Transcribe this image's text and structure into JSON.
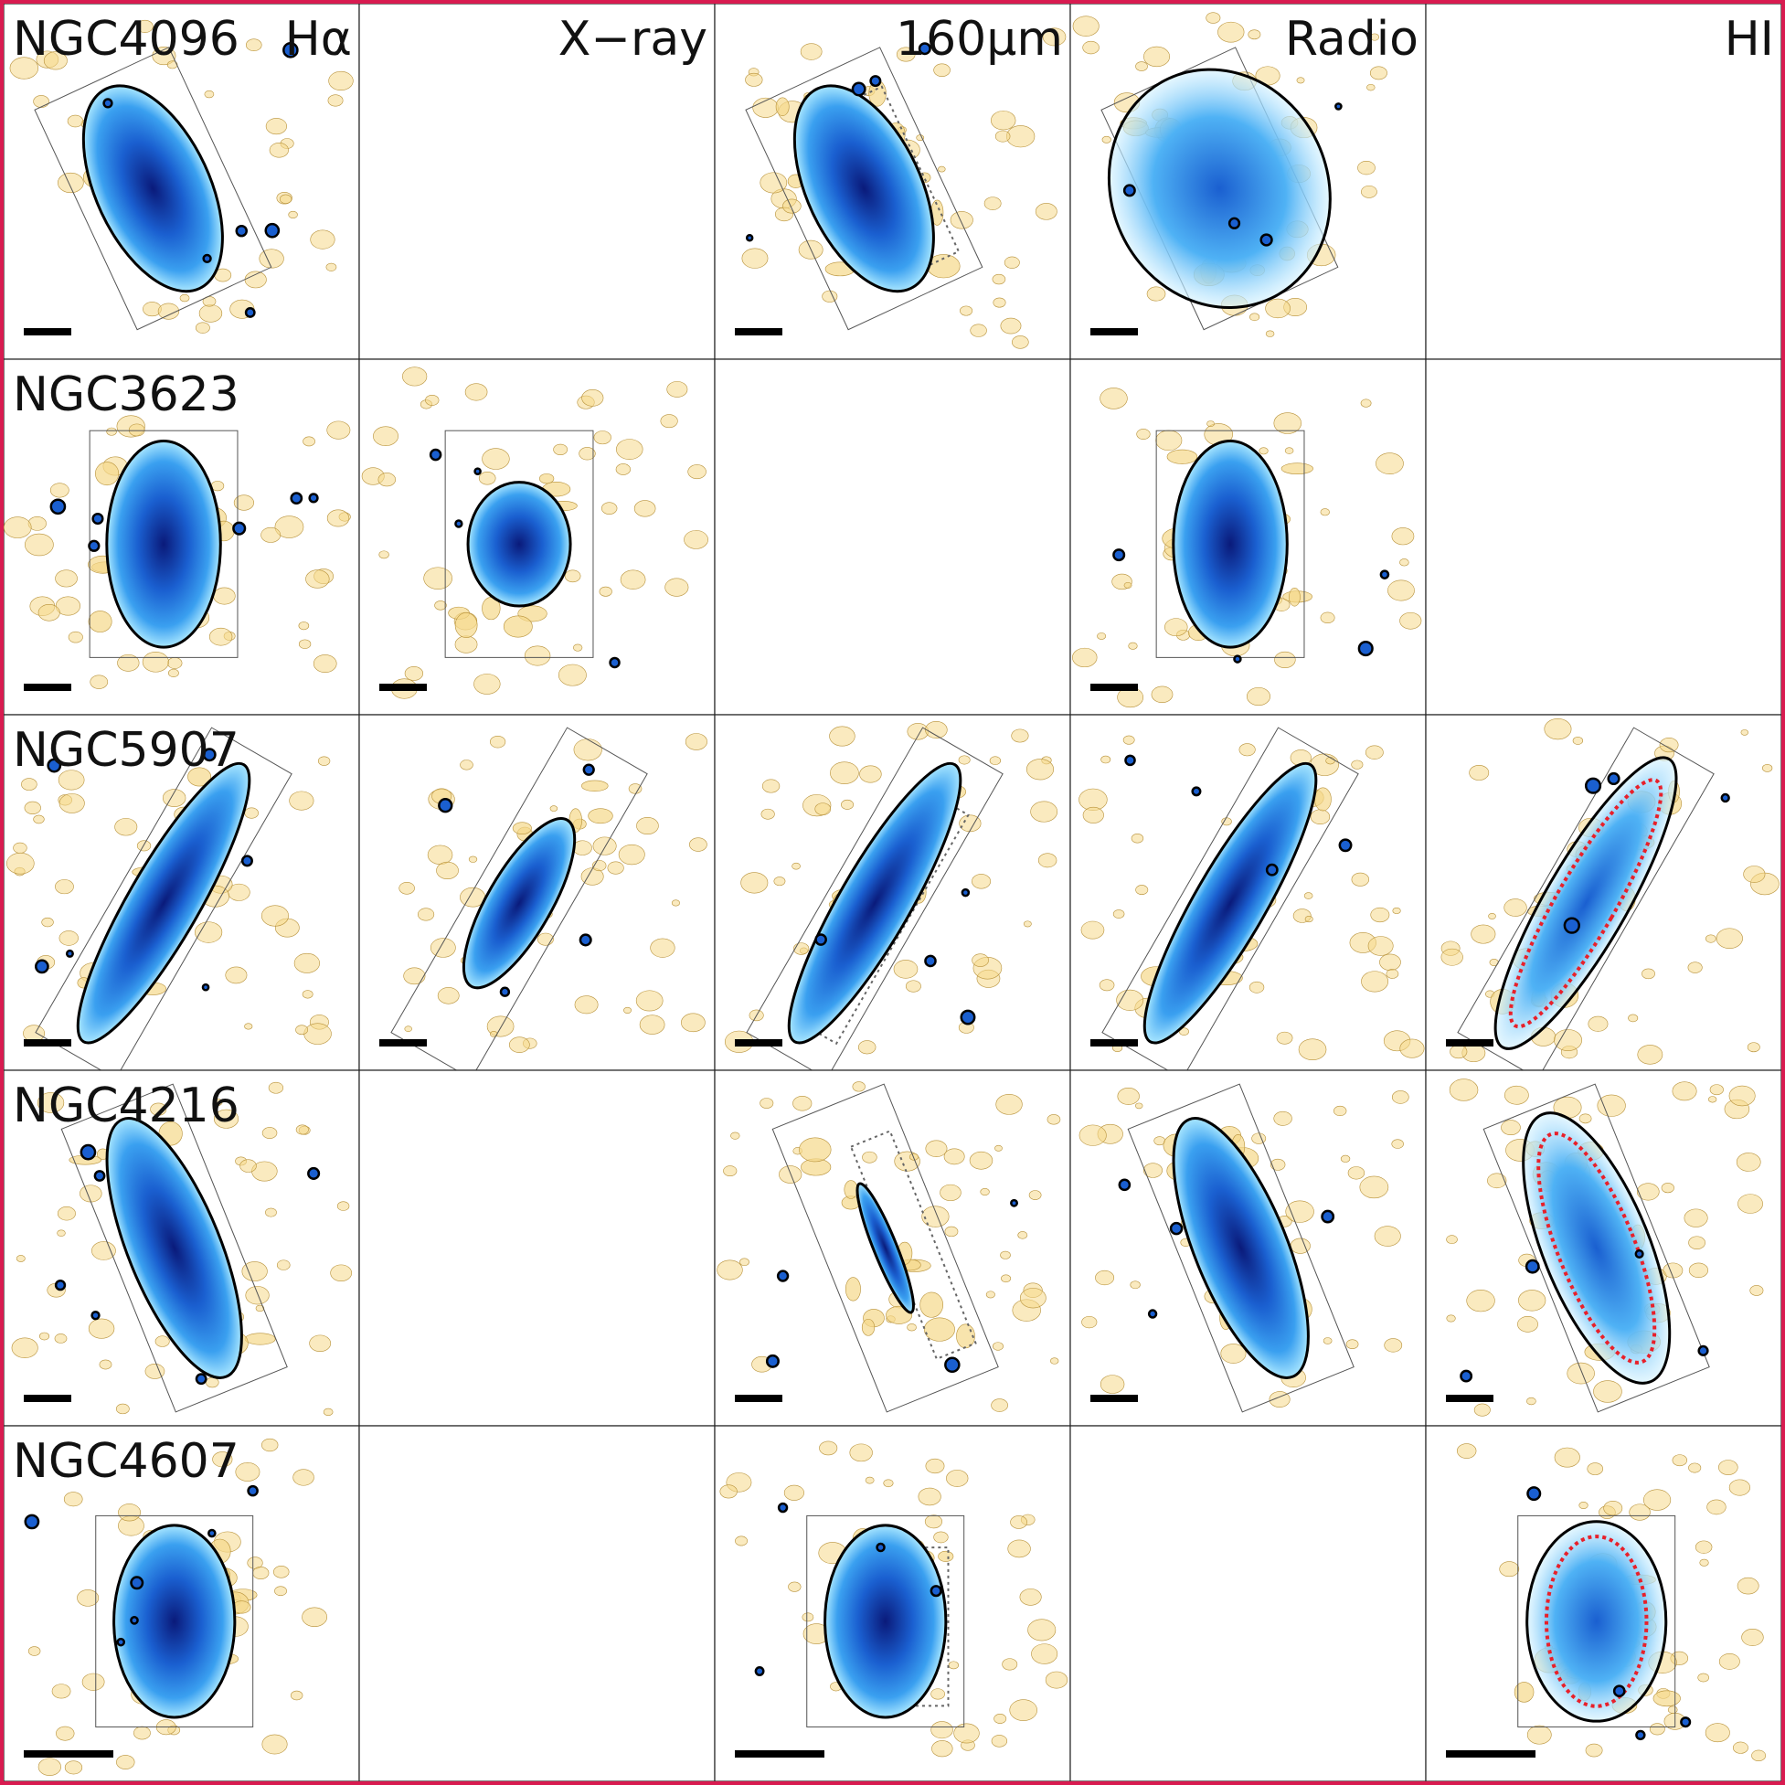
{
  "figure": {
    "columns": [
      "Hα",
      "X−ray",
      "160μm",
      "Radio",
      "HI"
    ],
    "rows": [
      {
        "galaxy": "NGC4096",
        "panels": {
          "halpha": true,
          "xray": false,
          "fir": true,
          "radio": true,
          "hi": false
        }
      },
      {
        "galaxy": "NGC3623",
        "panels": {
          "halpha": true,
          "xray": true,
          "fir": false,
          "radio": true,
          "hi": false
        }
      },
      {
        "galaxy": "NGC5907",
        "panels": {
          "halpha": true,
          "xray": true,
          "fir": true,
          "radio": true,
          "hi": true
        }
      },
      {
        "galaxy": "NGC4216",
        "panels": {
          "halpha": true,
          "xray": false,
          "fir": true,
          "radio": true,
          "hi": true
        }
      },
      {
        "galaxy": "NGC4607",
        "panels": {
          "halpha": true,
          "xray": false,
          "fir": true,
          "radio": false,
          "hi": true
        }
      }
    ],
    "colors": {
      "frame": "#d81b50",
      "emission_dark": "#0a1a7a",
      "emission_mid": "#1a7fe0",
      "emission_light": "#a8e6ff",
      "dust_contours": "#f5d98a",
      "contour_line": "#000000",
      "hi_contour": "#e8202a"
    }
  }
}
